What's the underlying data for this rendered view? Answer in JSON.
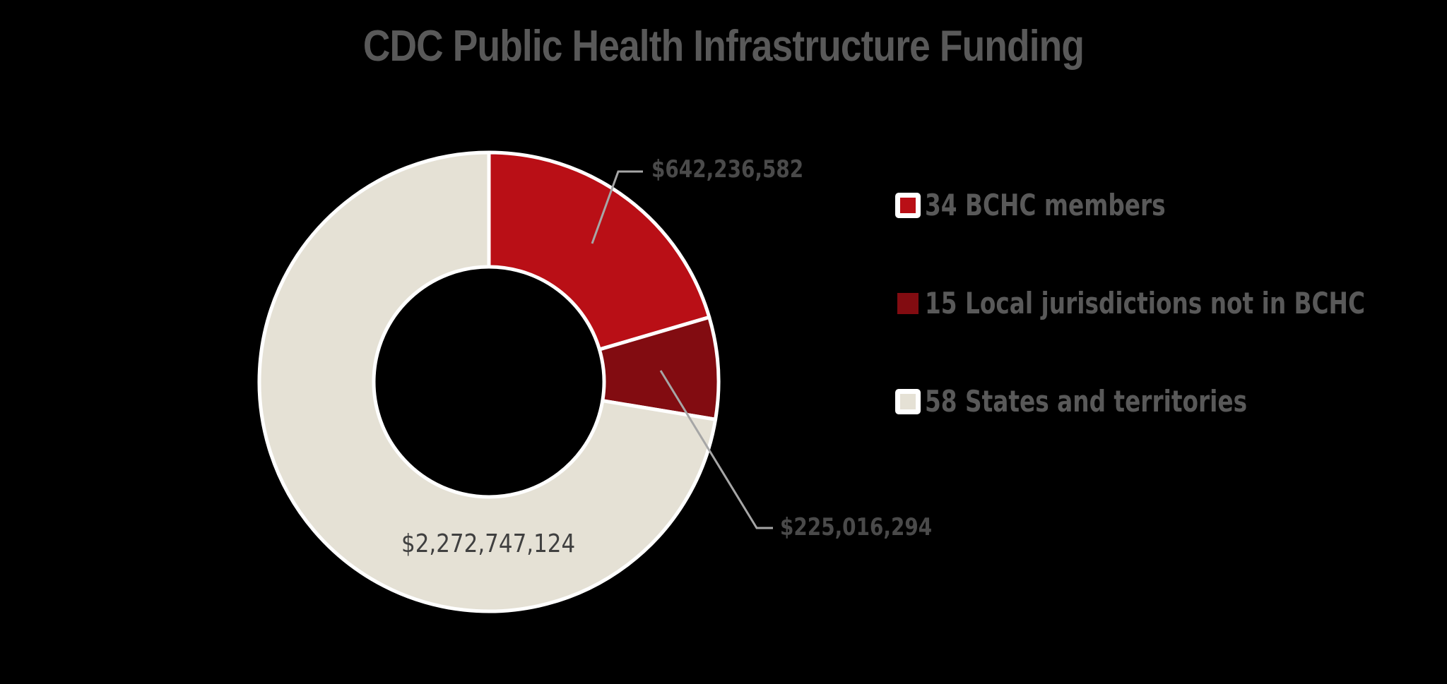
{
  "chart": {
    "title": "CDC Public Health Infrastructure Funding"
  },
  "legend": {
    "items": [
      {
        "label": "34 BCHC members",
        "color": "#b90f16",
        "framed": true
      },
      {
        "label": "15 Local jurisdictions not in BCHC",
        "color": "#820c11",
        "framed": false
      },
      {
        "label": "58 States and territories",
        "color": "#e5e1d5",
        "framed": true
      }
    ]
  },
  "labels": {
    "bchc": "$642,236,582",
    "local": "$225,016,294",
    "states": "$2,272,747,124"
  },
  "colors": {
    "background": "#000000",
    "title": "#595959",
    "segment_border": "#ffffff",
    "leader_line": "#a6a6a6"
  },
  "chart_data": {
    "type": "pie",
    "subtype": "donut",
    "title": "CDC Public Health Infrastructure Funding",
    "categories": [
      "34 BCHC members",
      "15 Local jurisdictions not in BCHC",
      "58 States and territories"
    ],
    "values": [
      642236582,
      225016294,
      2272747124
    ],
    "value_labels": [
      "$642,236,582",
      "$225,016,294",
      "$2,272,747,124"
    ],
    "colors": [
      "#b90f16",
      "#820c11",
      "#e5e1d5"
    ],
    "start_angle_deg": 0,
    "direction": "clockwise",
    "legend_position": "right",
    "xlabel": "",
    "ylabel": ""
  }
}
